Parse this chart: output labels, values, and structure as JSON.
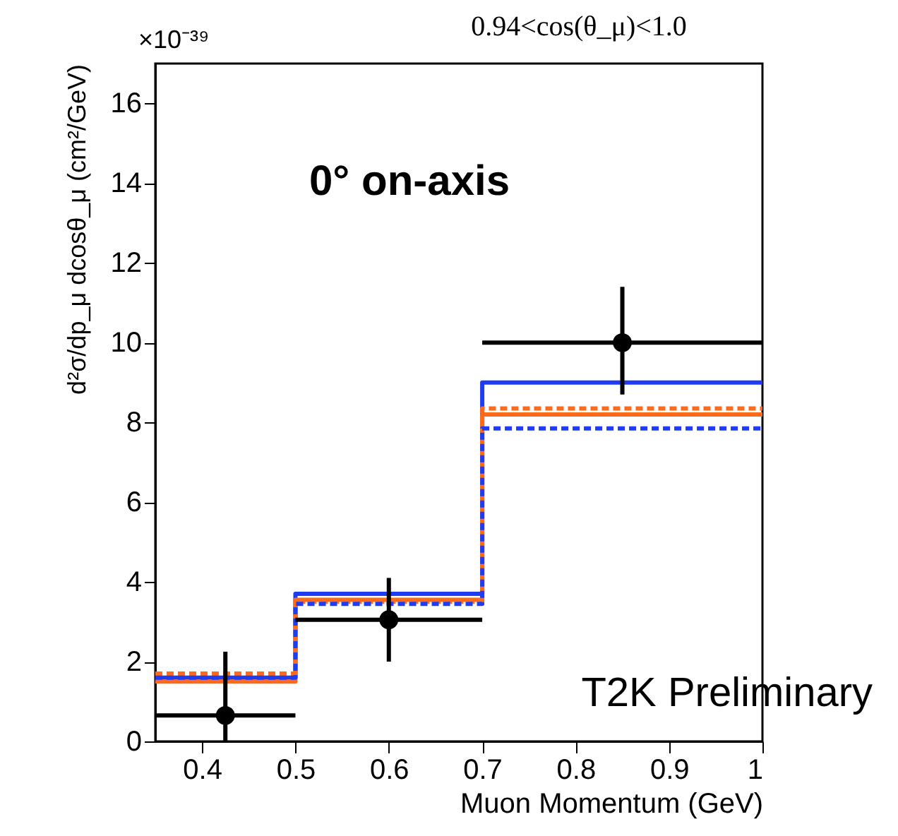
{
  "chart_data": {
    "type": "step",
    "title": "0.94<cos(θ_μ)<1.0",
    "xlabel": "Muon Momentum (GeV)",
    "ylabel": "d²σ/dp_μ dcosθ_μ (cm²/GeV)",
    "annotations": [
      "×10⁻³⁹",
      "0° on-axis",
      "T2K Preliminary"
    ],
    "xlim": [
      0.35,
      1.0
    ],
    "xticks": [
      0.4,
      0.5,
      0.6,
      0.7,
      0.8,
      0.9,
      1
    ],
    "ylim": [
      0,
      17
    ],
    "yticks": [
      0,
      2,
      4,
      6,
      8,
      10,
      12,
      14,
      16
    ],
    "grid": false,
    "series": [
      {
        "type": "step",
        "color": "#1f3cf5",
        "line_style": "solid",
        "x": [
          0.35,
          0.5,
          0.7,
          1.0
        ],
        "values": [
          1.6,
          3.7,
          9.0,
          9.0
        ]
      },
      {
        "type": "step",
        "color": "#ff6a1a",
        "line_style": "solid",
        "x": [
          0.35,
          0.5,
          0.7,
          1.0
        ],
        "values": [
          1.5,
          3.55,
          8.2,
          8.2
        ]
      },
      {
        "type": "step",
        "color": "#ff6a1a",
        "line_style": "dashed",
        "x": [
          0.35,
          0.5,
          0.7,
          1.0
        ],
        "values": [
          1.7,
          3.5,
          8.35,
          8.35
        ]
      },
      {
        "type": "step",
        "color": "#1f3cf5",
        "line_style": "dashed",
        "x": [
          0.35,
          0.5,
          0.7,
          1.0
        ],
        "values": [
          1.6,
          3.45,
          7.85,
          7.85
        ]
      },
      {
        "type": "scatter",
        "color": "#000000",
        "marker": "circle",
        "x": [
          0.425,
          0.6,
          0.85
        ],
        "values": [
          0.65,
          3.05,
          10.0
        ],
        "errors": [
          [
            0,
            2.25
          ],
          [
            2.0,
            4.1
          ],
          [
            8.7,
            11.4
          ]
        ],
        "xerrors": [
          [
            0.35,
            0.5
          ],
          [
            0.5,
            0.7
          ],
          [
            0.7,
            1.0
          ]
        ]
      }
    ]
  }
}
